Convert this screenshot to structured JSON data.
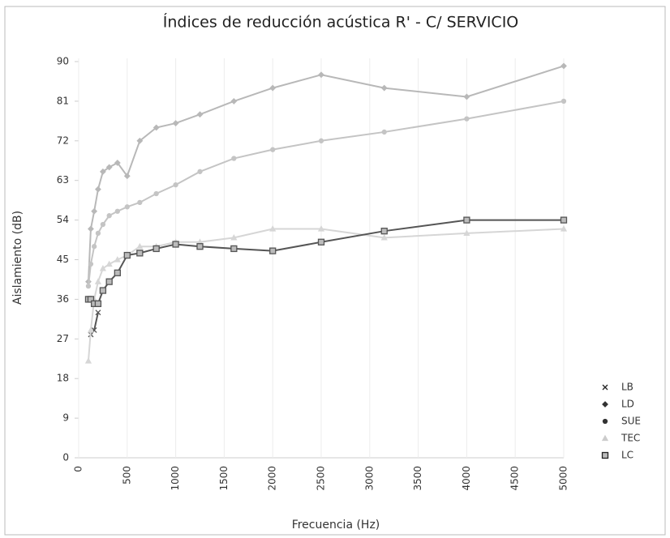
{
  "chart_data": {
    "type": "line",
    "title": "Índices de reducción acústica R' - C/ SERVICIO",
    "x_label": "Frecuencia (Hz)",
    "y_label": "Aislamiento (dB)",
    "x": [
      100,
      125,
      160,
      200,
      250,
      315,
      400,
      500,
      630,
      800,
      1000,
      1250,
      1600,
      2000,
      2500,
      3150,
      4000,
      5000
    ],
    "xlim": [
      0,
      5000
    ],
    "xticks": [
      0,
      500,
      1000,
      1500,
      2000,
      2500,
      3000,
      3500,
      4000,
      4500,
      5000
    ],
    "ylim": [
      0,
      90
    ],
    "yticks": [
      0,
      9,
      18,
      27,
      36,
      45,
      54,
      63,
      72,
      81,
      90
    ],
    "grid": true,
    "legend": "right",
    "series": [
      {
        "name": "LB",
        "color": "#555555",
        "marker": "x",
        "values": [
          null,
          28,
          29,
          33,
          null,
          null,
          null,
          null,
          null,
          null,
          null,
          null,
          null,
          null,
          null,
          null,
          null,
          null
        ]
      },
      {
        "name": "LD",
        "color": "#b8b8b8",
        "marker": "diamond",
        "values": [
          40,
          52,
          56,
          61,
          65,
          66,
          67,
          64,
          72,
          75,
          76,
          78,
          81,
          84,
          87,
          84,
          82,
          89
        ]
      },
      {
        "name": "SUE",
        "color": "#c4c4c4",
        "marker": "circle",
        "values": [
          39,
          44,
          48,
          51,
          53,
          55,
          56,
          57,
          58,
          60,
          62,
          65,
          68,
          70,
          72,
          74,
          77,
          81
        ]
      },
      {
        "name": "TEC",
        "color": "#d6d6d6",
        "marker": "triangle",
        "values": [
          22,
          29,
          36,
          40,
          43,
          44,
          45,
          46,
          48,
          48,
          49,
          49,
          50,
          52,
          52,
          50,
          51,
          52
        ]
      },
      {
        "name": "LC",
        "color": "#555555",
        "marker": "square",
        "values": [
          36,
          36,
          35,
          35,
          38,
          40,
          42,
          46,
          46.5,
          47.5,
          48.5,
          48,
          47.5,
          47,
          49,
          51.5,
          54,
          54
        ]
      }
    ]
  }
}
